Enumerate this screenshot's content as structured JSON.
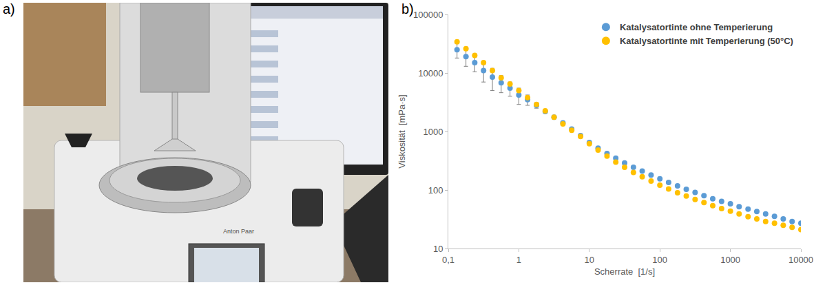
{
  "panel_a": {
    "label": "a)",
    "texts": [
      "Anton Paar"
    ]
  },
  "chart_data": {
    "type": "scatter",
    "panel_label": "b)",
    "x_label": "Scherrate  [1/s]",
    "y_label": "Viskosität  [mPa·s]",
    "log": true,
    "grid": false,
    "legend": "top-right",
    "marker": "circle",
    "xlim": [
      0.1,
      10000
    ],
    "xticks": [
      {
        "value": 0.1,
        "label": "0,1"
      },
      1,
      10,
      100,
      1000,
      10000
    ],
    "ylim": [
      10,
      100000
    ],
    "yticks": [
      10,
      100,
      1000,
      10000,
      100000
    ],
    "x": [
      0.133,
      0.178,
      0.237,
      0.316,
      0.422,
      0.562,
      0.75,
      1,
      1.33,
      1.78,
      2.37,
      3.16,
      4.22,
      5.62,
      7.5,
      10,
      13.3,
      17.8,
      23.7,
      31.6,
      42.2,
      56.2,
      75,
      100,
      133,
      178,
      237,
      316,
      422,
      562,
      750,
      1000,
      1330,
      1780,
      2370,
      3160,
      4220,
      5620,
      7500,
      10000
    ],
    "series": [
      {
        "name": "Katalysatortinte ohne Temperierung",
        "color": "#5b9bd5",
        "values": [
          25000,
          19000,
          15000,
          11000,
          8500,
          6800,
          5500,
          4200,
          3500,
          2800,
          2200,
          1750,
          1400,
          1100,
          850,
          650,
          520,
          420,
          350,
          290,
          245,
          210,
          180,
          155,
          135,
          118,
          103,
          91,
          80,
          71,
          64,
          58,
          52,
          47,
          43,
          39,
          35.5,
          32,
          29,
          27
        ],
        "errors": [
          7000,
          6000,
          4500,
          4000,
          3500,
          2200,
          1500,
          1300,
          700,
          300,
          150,
          80,
          50,
          30,
          20,
          10,
          5,
          4,
          3,
          2,
          2,
          1,
          1,
          1,
          1,
          1,
          1,
          1,
          1,
          1,
          1,
          1,
          1,
          1,
          1,
          1,
          1,
          1,
          1,
          1
        ]
      },
      {
        "name": "Katalysatortinte mit Temperierung (50°C)",
        "color": "#ffc000",
        "values": [
          34000,
          26000,
          20000,
          15000,
          11000,
          8300,
          6500,
          5000,
          3800,
          2900,
          2250,
          1750,
          1350,
          1050,
          820,
          620,
          480,
          380,
          300,
          245,
          200,
          168,
          142,
          121,
          104,
          90,
          79,
          69,
          61,
          54,
          48,
          43.5,
          39,
          35,
          32,
          29,
          27,
          25,
          23,
          21
        ]
      }
    ]
  }
}
